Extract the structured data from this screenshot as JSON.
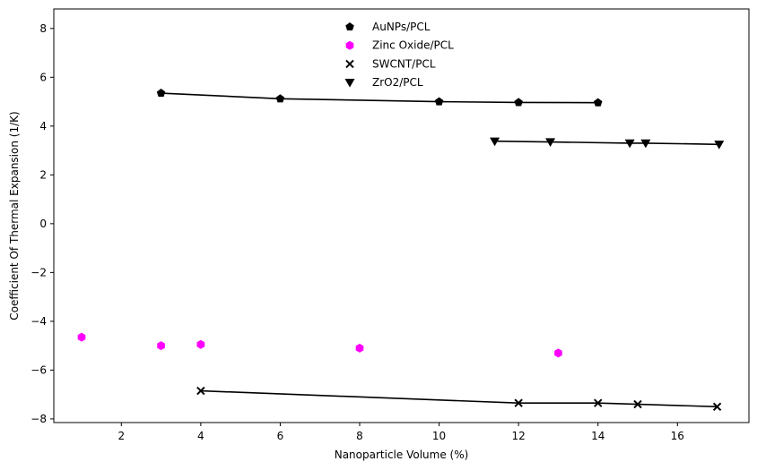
{
  "chart_data": {
    "type": "scatter",
    "xlabel": "Nanoparticle Volume (%)",
    "ylabel": "Coefficient Of Thermal Expansion (1/K)",
    "xlim": [
      0.3,
      17.8
    ],
    "ylim": [
      -8.15,
      8.8
    ],
    "xticks": [
      2,
      4,
      6,
      8,
      10,
      12,
      14,
      16
    ],
    "yticks": [
      -8,
      -6,
      -4,
      -2,
      0,
      2,
      4,
      6,
      8
    ],
    "grid": false,
    "legend_position": "top-center",
    "series": [
      {
        "name": "AuNPs/PCL",
        "marker": "pentagon",
        "color": "#000000",
        "line": true,
        "x": [
          3,
          6,
          10,
          12,
          14
        ],
        "y": [
          5.35,
          5.12,
          5.0,
          4.97,
          4.96
        ]
      },
      {
        "name": "Zinc Oxide/PCL",
        "marker": "hexagon",
        "color": "#ff00ff",
        "line": false,
        "x": [
          1,
          3,
          4,
          8,
          13
        ],
        "y": [
          -4.65,
          -5.0,
          -4.95,
          -5.1,
          -5.3
        ]
      },
      {
        "name": "SWCNT/PCL",
        "marker": "x",
        "color": "#000000",
        "line": true,
        "x": [
          4,
          12,
          14,
          15,
          17
        ],
        "y": [
          -6.85,
          -7.35,
          -7.35,
          -7.4,
          -7.5
        ]
      },
      {
        "name": "ZrO2/PCL",
        "marker": "triangle-down",
        "color": "#000000",
        "line": true,
        "x": [
          11.4,
          12.8,
          14.8,
          15.2,
          17.05
        ],
        "y": [
          3.38,
          3.35,
          3.3,
          3.3,
          3.25
        ]
      }
    ]
  }
}
